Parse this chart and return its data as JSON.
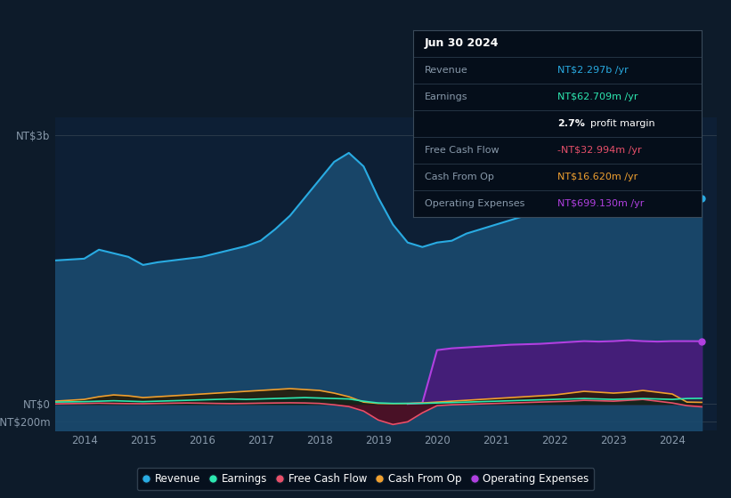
{
  "background_color": "#0d1b2a",
  "plot_bg_color": "#0d1f35",
  "box_bg_color": "#050e1a",
  "y_label_top": "NT$3b",
  "y_label_mid": "NT$0",
  "y_label_bot": "-NT$200m",
  "x_ticks": [
    2014,
    2015,
    2016,
    2017,
    2018,
    2019,
    2020,
    2021,
    2022,
    2023,
    2024
  ],
  "ylim": [
    -300,
    3200
  ],
  "revenue_color": "#29abe2",
  "revenue_fill": "#1a4a6e",
  "earnings_color": "#2de8b0",
  "fcf_color": "#e8506a",
  "cashop_color": "#f0a030",
  "opex_color": "#b040e0",
  "opex_fill": "#4a1a7a",
  "grid_color": "#2a3a4a",
  "tick_color": "#8899aa",
  "legend_entries": [
    "Revenue",
    "Earnings",
    "Free Cash Flow",
    "Cash From Op",
    "Operating Expenses"
  ],
  "info_box": {
    "title": "Jun 30 2024",
    "rows": [
      {
        "label": "Revenue",
        "value": "NT$2.297b /yr",
        "value_color": "#29abe2",
        "bold_part": ""
      },
      {
        "label": "Earnings",
        "value": "NT$62.709m /yr",
        "value_color": "#2de8b0",
        "bold_part": ""
      },
      {
        "label": "",
        "value": "profit margin",
        "value_color": "#ffffff",
        "bold_part": "2.7%"
      },
      {
        "label": "Free Cash Flow",
        "value": "-NT$32.994m /yr",
        "value_color": "#e8506a",
        "bold_part": ""
      },
      {
        "label": "Cash From Op",
        "value": "NT$16.620m /yr",
        "value_color": "#f0a030",
        "bold_part": ""
      },
      {
        "label": "Operating Expenses",
        "value": "NT$699.130m /yr",
        "value_color": "#b040e0",
        "bold_part": ""
      }
    ]
  },
  "revenue": {
    "x": [
      2013.5,
      2014.0,
      2014.25,
      2014.5,
      2014.75,
      2015.0,
      2015.25,
      2015.5,
      2015.75,
      2016.0,
      2016.25,
      2016.5,
      2016.75,
      2017.0,
      2017.25,
      2017.5,
      2017.75,
      2018.0,
      2018.25,
      2018.5,
      2018.75,
      2019.0,
      2019.25,
      2019.5,
      2019.75,
      2020.0,
      2020.25,
      2020.5,
      2020.75,
      2021.0,
      2021.25,
      2021.5,
      2021.75,
      2022.0,
      2022.25,
      2022.5,
      2022.75,
      2023.0,
      2023.25,
      2023.5,
      2023.75,
      2024.0,
      2024.25,
      2024.5
    ],
    "y": [
      1600,
      1620,
      1720,
      1680,
      1640,
      1550,
      1580,
      1600,
      1620,
      1640,
      1680,
      1720,
      1760,
      1820,
      1950,
      2100,
      2300,
      2500,
      2700,
      2800,
      2650,
      2300,
      2000,
      1800,
      1750,
      1800,
      1820,
      1900,
      1950,
      2000,
      2050,
      2100,
      2200,
      2400,
      2650,
      2800,
      2750,
      2700,
      2650,
      2600,
      2400,
      2200,
      2300,
      2297
    ]
  },
  "earnings": {
    "x": [
      2013.5,
      2014.0,
      2014.25,
      2014.5,
      2014.75,
      2015.0,
      2015.25,
      2015.5,
      2015.75,
      2016.0,
      2016.25,
      2016.5,
      2016.75,
      2017.0,
      2017.25,
      2017.5,
      2017.75,
      2018.0,
      2018.25,
      2018.5,
      2018.75,
      2019.0,
      2019.25,
      2019.5,
      2019.75,
      2020.0,
      2020.25,
      2020.5,
      2020.75,
      2021.0,
      2021.25,
      2021.5,
      2021.75,
      2022.0,
      2022.25,
      2022.5,
      2022.75,
      2023.0,
      2023.25,
      2023.5,
      2023.75,
      2024.0,
      2024.25,
      2024.5
    ],
    "y": [
      20,
      25,
      30,
      35,
      30,
      25,
      30,
      35,
      40,
      45,
      50,
      55,
      50,
      55,
      60,
      65,
      70,
      65,
      60,
      55,
      30,
      10,
      5,
      5,
      5,
      10,
      15,
      20,
      25,
      30,
      35,
      40,
      45,
      50,
      55,
      60,
      55,
      50,
      55,
      60,
      55,
      50,
      60,
      62
    ]
  },
  "fcf": {
    "x": [
      2013.5,
      2014.0,
      2014.25,
      2014.5,
      2014.75,
      2015.0,
      2015.25,
      2015.5,
      2015.75,
      2016.0,
      2016.25,
      2016.5,
      2016.75,
      2017.0,
      2017.25,
      2017.5,
      2017.75,
      2018.0,
      2018.25,
      2018.5,
      2018.75,
      2019.0,
      2019.25,
      2019.5,
      2019.75,
      2020.0,
      2020.25,
      2020.5,
      2020.75,
      2021.0,
      2021.25,
      2021.5,
      2021.75,
      2022.0,
      2022.25,
      2022.5,
      2022.75,
      2023.0,
      2023.25,
      2023.5,
      2023.75,
      2024.0,
      2024.25,
      2024.5
    ],
    "y": [
      0,
      5,
      8,
      5,
      3,
      2,
      5,
      8,
      10,
      8,
      5,
      3,
      5,
      8,
      10,
      12,
      10,
      5,
      -10,
      -30,
      -80,
      -180,
      -230,
      -200,
      -100,
      -20,
      -10,
      -5,
      0,
      5,
      10,
      15,
      20,
      25,
      30,
      40,
      35,
      30,
      40,
      50,
      30,
      10,
      -20,
      -33
    ]
  },
  "cashop": {
    "x": [
      2013.5,
      2014.0,
      2014.25,
      2014.5,
      2014.75,
      2015.0,
      2015.25,
      2015.5,
      2015.75,
      2016.0,
      2016.25,
      2016.5,
      2016.75,
      2017.0,
      2017.25,
      2017.5,
      2017.75,
      2018.0,
      2018.25,
      2018.5,
      2018.75,
      2019.0,
      2019.25,
      2019.5,
      2019.75,
      2020.0,
      2020.25,
      2020.5,
      2020.75,
      2021.0,
      2021.25,
      2021.5,
      2021.75,
      2022.0,
      2022.25,
      2022.5,
      2022.75,
      2023.0,
      2023.25,
      2023.5,
      2023.75,
      2024.0,
      2024.25,
      2024.5
    ],
    "y": [
      30,
      50,
      80,
      100,
      90,
      70,
      80,
      90,
      100,
      110,
      120,
      130,
      140,
      150,
      160,
      170,
      160,
      150,
      120,
      80,
      20,
      5,
      3,
      5,
      10,
      20,
      30,
      40,
      50,
      60,
      70,
      80,
      90,
      100,
      120,
      140,
      130,
      120,
      130,
      150,
      130,
      110,
      20,
      17
    ]
  },
  "opex": {
    "x": [
      2019.5,
      2019.75,
      2020.0,
      2020.25,
      2020.5,
      2020.75,
      2021.0,
      2021.25,
      2021.5,
      2021.75,
      2022.0,
      2022.25,
      2022.5,
      2022.75,
      2023.0,
      2023.25,
      2023.5,
      2023.75,
      2024.0,
      2024.25,
      2024.5
    ],
    "y": [
      0,
      10,
      600,
      620,
      630,
      640,
      650,
      660,
      665,
      670,
      680,
      690,
      700,
      695,
      700,
      710,
      700,
      695,
      700,
      700,
      699
    ]
  }
}
